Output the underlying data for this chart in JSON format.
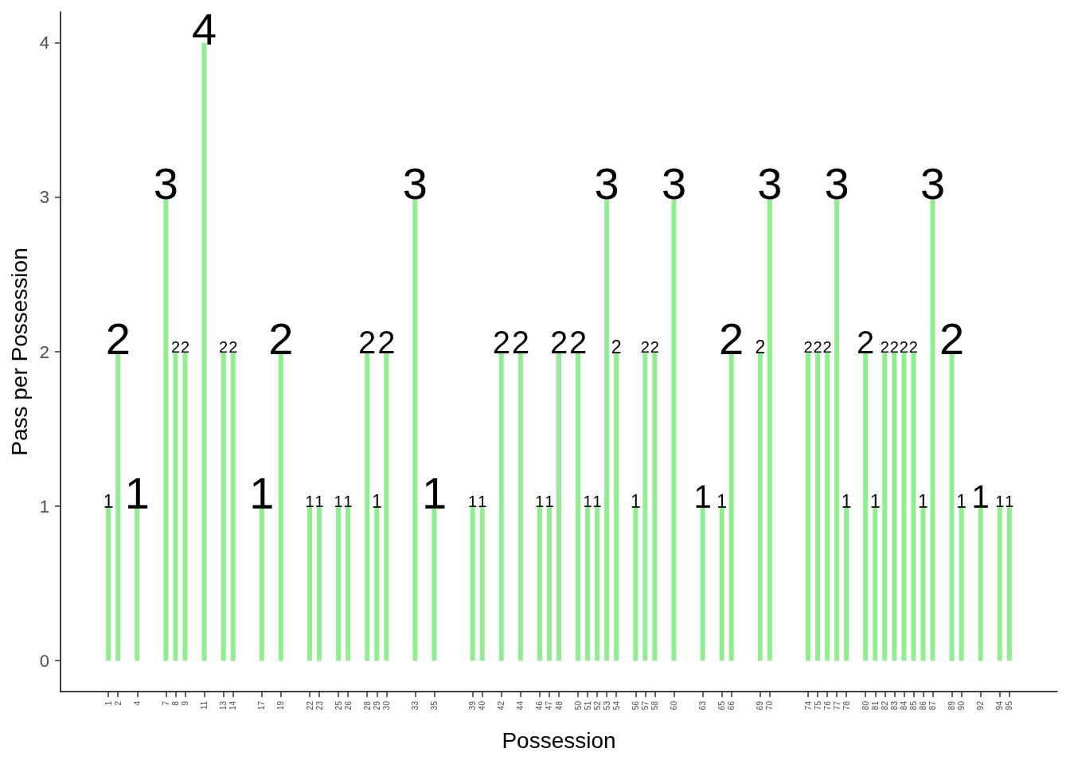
{
  "chart_data": {
    "type": "bar",
    "xlabel": "Possession",
    "ylabel": "Pass per Possession",
    "x": [
      1,
      2,
      4,
      7,
      8,
      9,
      11,
      13,
      14,
      17,
      19,
      22,
      23,
      25,
      26,
      28,
      29,
      30,
      33,
      35,
      39,
      40,
      42,
      44,
      46,
      47,
      48,
      50,
      51,
      52,
      53,
      54,
      56,
      57,
      58,
      60,
      63,
      65,
      66,
      69,
      70,
      74,
      75,
      76,
      77,
      78,
      80,
      81,
      82,
      83,
      84,
      85,
      86,
      87,
      89,
      90,
      92,
      94,
      95
    ],
    "values": [
      1,
      2,
      1,
      3,
      2,
      2,
      4,
      2,
      2,
      1,
      2,
      1,
      1,
      1,
      1,
      2,
      1,
      2,
      3,
      1,
      1,
      1,
      2,
      2,
      1,
      1,
      2,
      2,
      1,
      1,
      3,
      2,
      1,
      2,
      2,
      3,
      1,
      1,
      2,
      2,
      3,
      2,
      2,
      2,
      3,
      1,
      2,
      1,
      2,
      2,
      2,
      2,
      1,
      3,
      2,
      1,
      1,
      1,
      1
    ],
    "color": "#90ee90",
    "xlim": [
      -4,
      100
    ],
    "xticks": [
      1,
      2,
      4,
      7,
      8,
      9,
      11,
      13,
      14,
      17,
      19,
      22,
      23,
      25,
      26,
      28,
      29,
      30,
      33,
      35,
      39,
      40,
      42,
      44,
      46,
      47,
      48,
      50,
      51,
      52,
      53,
      54,
      56,
      57,
      58,
      60,
      63,
      65,
      66,
      69,
      70,
      74,
      75,
      76,
      77,
      78,
      80,
      81,
      82,
      83,
      84,
      85,
      86,
      87,
      89,
      90,
      92,
      94,
      95
    ],
    "ylim": [
      -0.2,
      4.2
    ],
    "yticks": [
      0,
      1,
      2,
      3,
      4
    ],
    "data_labels": true,
    "grid": false
  }
}
